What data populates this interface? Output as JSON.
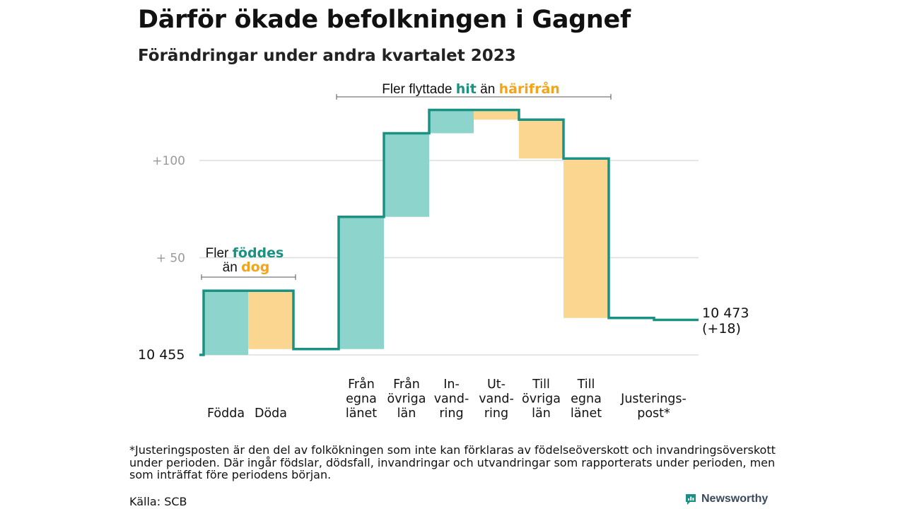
{
  "title": "Därför ökade befolkningen i Gagnef",
  "subtitle": "Förändringar under andra kvartalet 2023",
  "colors": {
    "in": "#8dd5cc",
    "out": "#fad690",
    "line": "#1a9283",
    "in_text": "#1a9283",
    "out_text": "#f2a41d",
    "grid": "#dddddd",
    "axis_text": "#9a9a9a"
  },
  "chart_data": {
    "type": "waterfall",
    "start_value": 10455,
    "end_value": 10473,
    "start_label": "10  455",
    "end_label": "10 473",
    "end_change_label": "(+18)",
    "y_ticks": [
      {
        "value": 100,
        "label": "+100"
      },
      {
        "value": 50,
        "label": "+  50"
      }
    ],
    "ylim": [
      0,
      130
    ],
    "grid": true,
    "steps": [
      {
        "label": "Födda",
        "change": 33,
        "kind": "in"
      },
      {
        "label": "Döda",
        "change": -30,
        "kind": "out"
      },
      {
        "label": "Från egna länet",
        "change": 68,
        "kind": "in"
      },
      {
        "label": "Från övriga län",
        "change": 43,
        "kind": "in"
      },
      {
        "label": "In-vand-ring",
        "change": 12,
        "kind": "in"
      },
      {
        "label": "Ut-vand-ring",
        "change": -5,
        "kind": "out"
      },
      {
        "label": "Till övriga län",
        "change": -20,
        "kind": "out"
      },
      {
        "label": "Till egna länet",
        "change": -82,
        "kind": "out"
      },
      {
        "label": "Justerings-post*",
        "change": -1,
        "kind": "adjust"
      }
    ],
    "category_labels": [
      [
        "Födda"
      ],
      [
        "Döda"
      ],
      [
        "Från",
        "egna",
        "länet"
      ],
      [
        "Från",
        "övriga",
        "län"
      ],
      [
        "In-",
        "vand-",
        "ring"
      ],
      [
        "Ut-",
        "vand-",
        "ring"
      ],
      [
        "Till",
        "övriga",
        "län"
      ],
      [
        "Till",
        "egna",
        "länet"
      ],
      [
        "Justerings-",
        "post*"
      ]
    ],
    "annotations": {
      "births": {
        "line1_prefix": "Fler ",
        "line1_highlight": "föddes",
        "line2_prefix": "än ",
        "line2_highlight": "dog"
      },
      "moves": {
        "prefix": "Fler flyttade ",
        "in_word": "hit",
        "middle": " än ",
        "out_word": "härifrån"
      }
    }
  },
  "footnote": "*Justeringsposten är den del av folkökningen som inte kan förklaras av födelseöverskott och invandringsöverskott under perioden. Där ingår födslar, dödsfall, invandringar och utvandringar som rapporterats under perioden, men som inträffat före periodens början.",
  "source": "Källa: SCB",
  "brand": "Newsworthy"
}
